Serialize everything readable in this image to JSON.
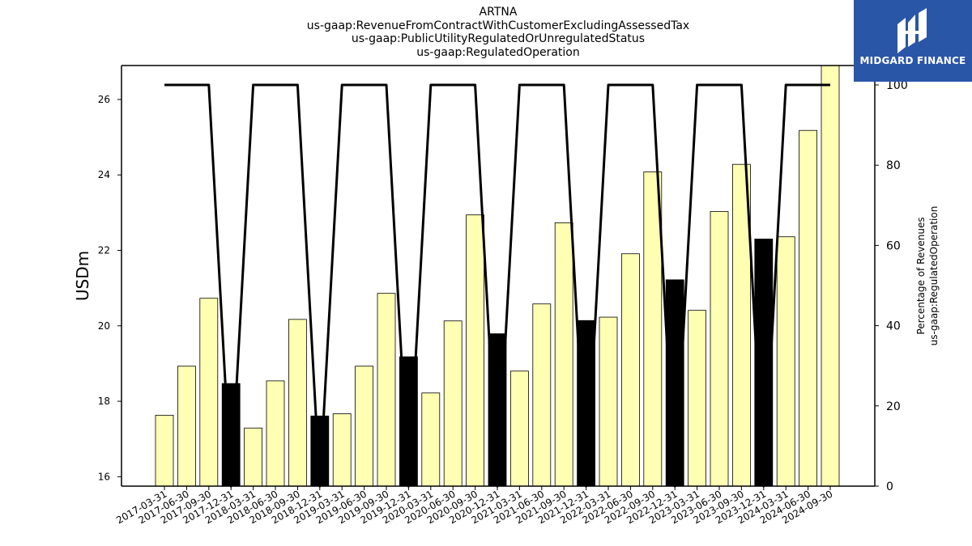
{
  "title_lines": [
    "ARTNA",
    "us-gaap:RevenueFromContractWithCustomerExcludingAssessedTax",
    "us-gaap:PublicUtilityRegulatedOrUnregulatedStatus",
    "us-gaap:RegulatedOperation"
  ],
  "logo": {
    "text": "MIDGARD FINANCE",
    "color": "#2a56a8"
  },
  "chart_data": {
    "type": "bar",
    "categories": [
      "2017-03-31",
      "2017-06-30",
      "2017-09-30",
      "2017-12-31",
      "2018-03-31",
      "2018-06-30",
      "2018-09-30",
      "2018-12-31",
      "2019-03-31",
      "2019-06-30",
      "2019-09-30",
      "2019-12-31",
      "2020-03-31",
      "2020-06-30",
      "2020-09-30",
      "2020-12-31",
      "2021-03-31",
      "2021-06-30",
      "2021-09-30",
      "2021-12-31",
      "2022-03-31",
      "2022-06-30",
      "2022-09-30",
      "2022-12-31",
      "2023-03-31",
      "2023-06-30",
      "2023-09-30",
      "2023-12-31",
      "2024-03-31",
      "2024-06-30",
      "2024-09-30"
    ],
    "values": [
      17.63,
      18.93,
      20.73,
      18.47,
      17.29,
      18.54,
      20.17,
      17.61,
      17.67,
      18.93,
      20.86,
      19.18,
      18.22,
      20.13,
      22.94,
      19.79,
      18.8,
      20.58,
      22.73,
      20.14,
      20.23,
      21.91,
      24.08,
      21.22,
      20.41,
      23.03,
      24.28,
      22.3,
      22.36,
      25.18,
      26.9
    ],
    "highlight": [
      false,
      false,
      false,
      true,
      false,
      false,
      false,
      true,
      false,
      false,
      false,
      true,
      false,
      false,
      false,
      true,
      false,
      false,
      false,
      true,
      false,
      false,
      false,
      true,
      false,
      false,
      false,
      true,
      false,
      false,
      false
    ],
    "bar_color": "#ffffb3",
    "highlight_color": "#000000",
    "ylabel": "USDm",
    "ylim": [
      15.75,
      26.9
    ],
    "yticks": [
      16,
      18,
      20,
      22,
      24,
      26
    ],
    "secondary": {
      "type": "line",
      "ylabel": [
        "Percentage of Revenues",
        "us-gaap:RegulatedOperation"
      ],
      "ylim": [
        0,
        100
      ],
      "yticks": [
        0,
        20,
        40,
        60,
        80,
        100
      ],
      "values": [
        100,
        100,
        100,
        0,
        100,
        100,
        100,
        0,
        100,
        100,
        100,
        0,
        100,
        100,
        100,
        0,
        100,
        100,
        100,
        0,
        100,
        100,
        100,
        0,
        100,
        100,
        100,
        0,
        100,
        100,
        100
      ],
      "color": "#000000"
    },
    "grid": false,
    "legend": "none"
  }
}
